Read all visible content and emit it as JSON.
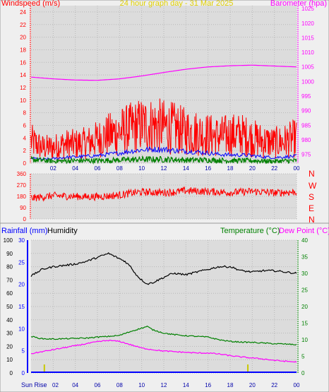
{
  "header": {
    "left_label": "Windspeed (m/s)",
    "title": "24 hour graph day - 31 Mar 2025",
    "right_label": "Barometer (hpa)"
  },
  "direction_labels": [
    "N",
    "W",
    "S",
    "E",
    "N"
  ],
  "bottom_header": {
    "rain": "Rainfall (mm)",
    "humidity": "Humidity",
    "temperature": "Temperature (°C)",
    "dewpoint": "Dew Point (°C)"
  },
  "sunrise_label": "Sun Rise",
  "colors": {
    "wind_gust": "#ff0000",
    "wind_avg": "#0000ff",
    "wind_low": "#008000",
    "barometer": "#ff00ff",
    "direction": "#ff0000",
    "humidity": "#000000",
    "temperature": "#008000",
    "dewpoint": "#ff00ff",
    "rainfall": "#0000ff",
    "sun_marker": "#c8c800",
    "plot_bg": "#dcdcdc",
    "panel_bg": "#efefef"
  },
  "chart_data": [
    {
      "type": "line",
      "title": "24 hour graph day - 31 Mar 2025",
      "x_ticks": [
        "02",
        "04",
        "06",
        "08",
        "10",
        "12",
        "14",
        "16",
        "18",
        "20",
        "22",
        "00"
      ],
      "xlim": [
        0,
        24
      ],
      "ylabel": "Windspeed (m/s)",
      "ylim": [
        0,
        25
      ],
      "y_ticks": [
        0,
        2,
        4,
        6,
        8,
        10,
        12,
        14,
        16,
        18,
        20,
        22,
        24
      ],
      "y2label": "Barometer (hpa)",
      "y2lim": [
        972,
        1026
      ],
      "y2_ticks": [
        975,
        980,
        985,
        990,
        995,
        1000,
        1005,
        1010,
        1015,
        1020,
        1025
      ],
      "grid": true,
      "series": [
        {
          "key": "gust",
          "axis": "left",
          "x": [
            0,
            1,
            2,
            3,
            4,
            5,
            6,
            7,
            8,
            9,
            10,
            11,
            12,
            13,
            14,
            15,
            16,
            17,
            18,
            19,
            20,
            21,
            22,
            23,
            24
          ],
          "y": [
            3.5,
            2.5,
            2.5,
            3.0,
            3.0,
            3.2,
            3.8,
            4.5,
            5.0,
            5.5,
            6.0,
            6.0,
            5.8,
            5.5,
            5.0,
            4.8,
            4.5,
            4.2,
            4.5,
            4.5,
            4.0,
            3.5,
            3.2,
            3.5,
            4.0
          ]
        },
        {
          "key": "avg",
          "axis": "left",
          "x": [
            0,
            1,
            2,
            3,
            4,
            5,
            6,
            7,
            8,
            9,
            10,
            11,
            12,
            13,
            14,
            15,
            16,
            17,
            18,
            19,
            20,
            21,
            22,
            23,
            24
          ],
          "y": [
            0.8,
            0.6,
            0.7,
            0.9,
            1.0,
            1.1,
            1.2,
            1.4,
            1.6,
            1.9,
            2.1,
            2.2,
            2.2,
            2.0,
            1.9,
            1.8,
            1.6,
            1.4,
            1.3,
            1.3,
            1.2,
            1.0,
            0.9,
            1.0,
            1.1
          ]
        },
        {
          "key": "low",
          "axis": "left",
          "x": [
            0,
            2,
            4,
            6,
            8,
            10,
            12,
            14,
            16,
            18,
            20,
            22,
            24
          ],
          "y": [
            0.6,
            0.3,
            0.4,
            0.4,
            0.5,
            0.6,
            0.6,
            0.5,
            0.5,
            0.4,
            0.4,
            0.3,
            0.4
          ]
        },
        {
          "key": "baro",
          "axis": "right",
          "x": [
            0,
            2,
            4,
            6,
            8,
            10,
            12,
            14,
            16,
            18,
            20,
            22,
            24
          ],
          "y": [
            1001.5,
            1000.9,
            1000.5,
            1000.4,
            1000.9,
            1001.9,
            1003.1,
            1004.2,
            1005.0,
            1005.4,
            1005.6,
            1005.3,
            1005.0
          ]
        }
      ]
    },
    {
      "type": "line",
      "ylabel": "Wind direction (deg)",
      "ylim": [
        0,
        360
      ],
      "y_ticks": [
        0,
        90,
        180,
        270,
        360
      ],
      "x_ticks": [
        "02",
        "04",
        "06",
        "08",
        "10",
        "12",
        "14",
        "16",
        "18",
        "20",
        "22",
        "00"
      ],
      "xlim": [
        0,
        24
      ],
      "series": [
        {
          "key": "dir",
          "x": [
            0,
            1,
            2,
            3,
            4,
            5,
            6,
            7,
            8,
            9,
            10,
            11,
            12,
            13,
            14,
            15,
            16,
            17,
            18,
            19,
            20,
            21,
            22,
            23,
            24
          ],
          "y": [
            165,
            175,
            185,
            182,
            180,
            176,
            178,
            182,
            190,
            205,
            215,
            212,
            210,
            215,
            225,
            222,
            218,
            215,
            210,
            215,
            220,
            215,
            208,
            212,
            215
          ]
        }
      ]
    },
    {
      "type": "line",
      "x_ticks": [
        "02",
        "04",
        "06",
        "08",
        "10",
        "12",
        "14",
        "16",
        "18",
        "20",
        "22",
        "00"
      ],
      "xlim": [
        0,
        24
      ],
      "y_outer": {
        "label": "Humidity",
        "lim": [
          0,
          100
        ],
        "ticks": [
          0,
          10,
          20,
          30,
          40,
          50,
          60,
          70,
          80,
          90,
          100
        ]
      },
      "y_inner": {
        "label": "Rainfall (mm)",
        "lim": [
          0,
          30
        ],
        "ticks": [
          0,
          5,
          10,
          15,
          20,
          25,
          30
        ]
      },
      "y_right": {
        "label": "Temperature (°C)",
        "lim": [
          0,
          40
        ],
        "ticks": [
          0,
          5,
          10,
          15,
          20,
          25,
          30,
          35,
          40
        ]
      },
      "annotations": [
        {
          "text": "Sun Rise",
          "x": 1.2
        },
        {
          "text": "",
          "x": 19.6
        }
      ],
      "series": [
        {
          "key": "humidity",
          "axis": "outer",
          "x": [
            0,
            1,
            2,
            3,
            4,
            5,
            6,
            7,
            7.5,
            8,
            8.5,
            9,
            9.5,
            10,
            10.5,
            11,
            11.5,
            12,
            12.5,
            13,
            14,
            15,
            16,
            17,
            18,
            19,
            20,
            21,
            22,
            23,
            24
          ],
          "y": [
            73,
            78,
            80,
            81,
            82,
            84,
            87,
            90,
            88,
            86,
            84,
            80,
            74,
            70,
            67,
            68,
            70,
            72,
            74,
            75,
            74,
            76,
            78,
            80,
            80,
            77,
            76,
            77,
            77,
            76,
            75
          ]
        },
        {
          "key": "temperature",
          "axis": "right",
          "x": [
            0,
            1,
            2,
            3,
            4,
            5,
            6,
            7,
            8,
            9,
            10,
            10.5,
            11,
            12,
            13,
            14,
            15,
            16,
            17,
            18,
            19,
            20,
            21,
            22,
            23,
            24
          ],
          "y": [
            11,
            10.3,
            10.2,
            10.3,
            10.4,
            10.5,
            10.8,
            11,
            11.3,
            12.5,
            13.5,
            14,
            13,
            12,
            11.5,
            11.2,
            11,
            10.8,
            10,
            9.5,
            9.3,
            9.2,
            9,
            8.8,
            8.7,
            8.5
          ]
        },
        {
          "key": "dewpoint",
          "axis": "right",
          "x": [
            0,
            1,
            2,
            3,
            4,
            5,
            6,
            7,
            8,
            9,
            10,
            11,
            12,
            13,
            14,
            15,
            16,
            17,
            18,
            19,
            20,
            21,
            22,
            23,
            24
          ],
          "y": [
            5.8,
            6.4,
            7,
            7.6,
            8.2,
            8.8,
            9.4,
            9.8,
            9.5,
            8.5,
            7.5,
            7,
            6.6,
            6.4,
            6.2,
            6,
            6,
            5.7,
            5.2,
            4.8,
            4.5,
            4.2,
            3.8,
            3.5,
            3.3
          ]
        },
        {
          "key": "rain",
          "axis": "inner",
          "x": [
            0,
            24
          ],
          "y": [
            0,
            0
          ]
        }
      ]
    }
  ]
}
